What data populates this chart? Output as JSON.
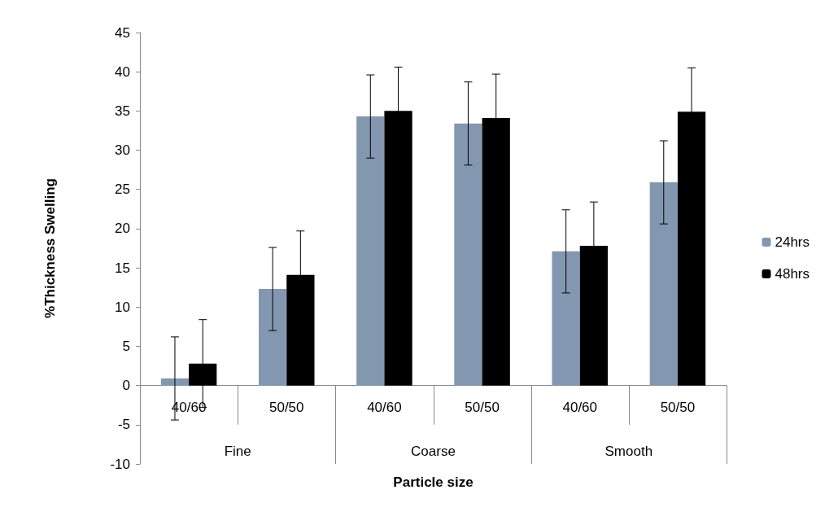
{
  "chart_data": {
    "type": "bar",
    "xlabel": "Particle size",
    "ylabel": "%Thickness Swelling",
    "categories": [
      "40/60",
      "50/50",
      "40/60",
      "50/50",
      "40/60",
      "50/50"
    ],
    "annotations": [
      "Fine",
      "Coarse",
      "Smooth"
    ],
    "series": [
      {
        "name": "24hrs",
        "color": "#8497b0",
        "values": [
          0.9,
          12.3,
          34.3,
          33.4,
          17.1,
          25.9
        ],
        "errors": [
          5.3,
          5.3,
          5.3,
          5.3,
          5.3,
          5.3
        ]
      },
      {
        "name": "48hrs",
        "color": "#000000",
        "values": [
          2.8,
          14.1,
          35.0,
          34.1,
          17.8,
          34.9
        ],
        "errors": [
          5.6,
          5.6,
          5.6,
          5.6,
          5.6,
          5.6
        ]
      }
    ],
    "ylim": [
      -10,
      45
    ],
    "yticks": [
      -10,
      -5,
      0,
      5,
      10,
      15,
      20,
      25,
      30,
      35,
      40,
      45
    ],
    "grid": false,
    "legend": "right"
  }
}
